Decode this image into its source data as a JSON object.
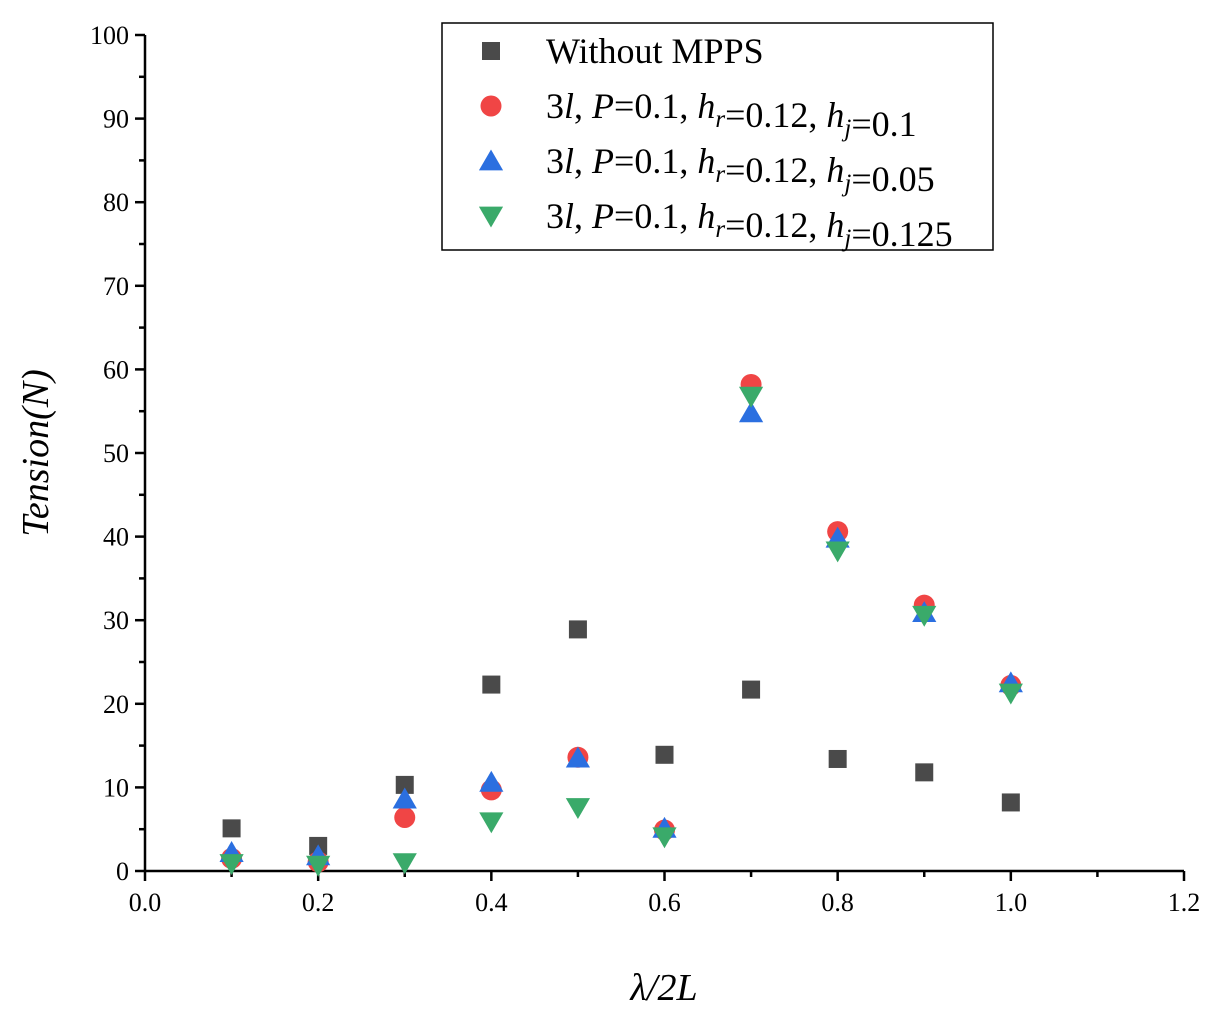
{
  "chart_data": {
    "type": "scatter",
    "title": "",
    "xlabel": "λ/2L",
    "ylabel": "Tension(N)",
    "xlim": [
      0,
      1.2
    ],
    "ylim": [
      0,
      100
    ],
    "xticks": [
      0.0,
      0.2,
      0.4,
      0.6,
      0.8,
      1.0,
      1.2
    ],
    "xtick_labels": [
      "0.0",
      "0.2",
      "0.4",
      "0.6",
      "0.8",
      "1.0",
      "1.2"
    ],
    "yticks": [
      0,
      10,
      20,
      30,
      40,
      50,
      60,
      70,
      80,
      90,
      100
    ],
    "ytick_labels": [
      "0",
      "10",
      "20",
      "30",
      "40",
      "50",
      "60",
      "70",
      "80",
      "90",
      "100"
    ],
    "grid": false,
    "legend_position": "top-right",
    "x": [
      0.1,
      0.2,
      0.3,
      0.4,
      0.5,
      0.6,
      0.7,
      0.8,
      0.9,
      1.0
    ],
    "series": [
      {
        "name": "Without MPPS",
        "legend_parts": [
          [
            "Without MPPS",
            false,
            ""
          ]
        ],
        "marker": "square",
        "color": "#4a4a4a",
        "values": [
          5.1,
          3.0,
          10.3,
          22.3,
          28.9,
          13.9,
          21.7,
          13.4,
          11.8,
          8.2
        ]
      },
      {
        "name": "3l, P=0.1, hr=0.12, hj=0.1",
        "legend_parts": [
          [
            "3",
            false,
            ""
          ],
          [
            "l",
            true,
            ""
          ],
          [
            ", ",
            false,
            ""
          ],
          [
            "P",
            true,
            ""
          ],
          [
            "=0.1, ",
            false,
            ""
          ],
          [
            "h",
            true,
            ""
          ],
          [
            "r",
            true,
            "sub"
          ],
          [
            "=0.12, ",
            false,
            ""
          ],
          [
            "h",
            true,
            ""
          ],
          [
            "j",
            true,
            "sub"
          ],
          [
            "=0.1",
            false,
            ""
          ]
        ],
        "marker": "circle",
        "color": "#f04545",
        "values": [
          1.5,
          1.1,
          6.4,
          9.7,
          13.6,
          4.9,
          58.2,
          40.6,
          31.8,
          22.2
        ]
      },
      {
        "name": "3l, P=0.1, hr=0.12, hj=0.05",
        "legend_parts": [
          [
            "3",
            false,
            ""
          ],
          [
            "l",
            true,
            ""
          ],
          [
            ", ",
            false,
            ""
          ],
          [
            "P",
            true,
            ""
          ],
          [
            "=0.1, ",
            false,
            ""
          ],
          [
            "h",
            true,
            ""
          ],
          [
            "r",
            true,
            "sub"
          ],
          [
            "=0.12, ",
            false,
            ""
          ],
          [
            "h",
            true,
            ""
          ],
          [
            "j",
            true,
            "sub"
          ],
          [
            "=0.05",
            false,
            ""
          ]
        ],
        "marker": "triangle-up",
        "color": "#2b6fe0",
        "values": [
          2.2,
          1.8,
          8.6,
          10.6,
          13.5,
          5.1,
          54.8,
          39.8,
          30.9,
          22.5
        ]
      },
      {
        "name": "3l, P=0.1, hr=0.12, hj=0.125",
        "legend_parts": [
          [
            "3",
            false,
            ""
          ],
          [
            "l",
            true,
            ""
          ],
          [
            ", ",
            false,
            ""
          ],
          [
            "P",
            true,
            ""
          ],
          [
            "=0.1, ",
            false,
            ""
          ],
          [
            "h",
            true,
            ""
          ],
          [
            "r",
            true,
            "sub"
          ],
          [
            "=0.12, ",
            false,
            ""
          ],
          [
            "h",
            true,
            ""
          ],
          [
            "j",
            true,
            "sub"
          ],
          [
            "=0.125",
            false,
            ""
          ]
        ],
        "marker": "triangle-down",
        "color": "#3aaa6a",
        "values": [
          0.9,
          0.7,
          1.0,
          5.9,
          7.6,
          4.1,
          56.8,
          38.3,
          30.6,
          21.3
        ]
      }
    ]
  }
}
